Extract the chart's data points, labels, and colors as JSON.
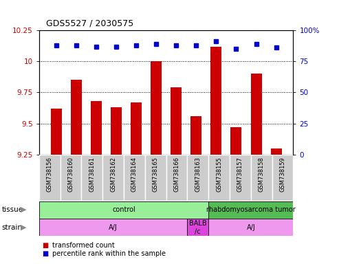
{
  "title": "GDS5527 / 2030575",
  "samples": [
    "GSM738156",
    "GSM738160",
    "GSM738161",
    "GSM738162",
    "GSM738164",
    "GSM738165",
    "GSM738166",
    "GSM738163",
    "GSM738155",
    "GSM738157",
    "GSM738158",
    "GSM738159"
  ],
  "transformed_counts": [
    9.62,
    9.85,
    9.68,
    9.63,
    9.67,
    10.0,
    9.79,
    9.56,
    10.12,
    9.47,
    9.9,
    9.3
  ],
  "percentile_ranks": [
    88,
    88,
    87,
    87,
    88,
    89,
    88,
    88,
    91,
    85,
    89,
    86
  ],
  "ymin": 9.25,
  "ymax": 10.25,
  "yticks": [
    9.25,
    9.5,
    9.75,
    10.0,
    10.25
  ],
  "ytick_labels": [
    "9.25",
    "9.5",
    "9.75",
    "10",
    "10.25"
  ],
  "y2min": 0,
  "y2max": 100,
  "y2ticks": [
    0,
    25,
    50,
    75,
    100
  ],
  "y2tick_labels": [
    "0",
    "25",
    "50",
    "75",
    "100%"
  ],
  "bar_color": "#cc0000",
  "dot_color": "#0000cc",
  "dot_size": 4,
  "bar_width": 0.55,
  "tissue_groups": [
    {
      "label": "control",
      "start": 0,
      "end": 8,
      "color": "#99ee99"
    },
    {
      "label": "rhabdomyosarcoma tumor",
      "start": 8,
      "end": 12,
      "color": "#55bb55"
    }
  ],
  "strain_groups": [
    {
      "label": "A/J",
      "start": 0,
      "end": 7,
      "color": "#ee99ee"
    },
    {
      "label": "BALB\n/c",
      "start": 7,
      "end": 8,
      "color": "#dd44dd"
    },
    {
      "label": "A/J",
      "start": 8,
      "end": 12,
      "color": "#ee99ee"
    }
  ],
  "tissue_label": "tissue",
  "strain_label": "strain",
  "legend_bar_label": "transformed count",
  "legend_dot_label": "percentile rank within the sample",
  "bg_color": "#ffffff",
  "plot_bg_color": "#ffffff",
  "tick_label_color_left": "#cc0000",
  "tick_label_color_right": "#0000cc",
  "cell_bg_color": "#cccccc",
  "cell_edge_color": "#ffffff"
}
